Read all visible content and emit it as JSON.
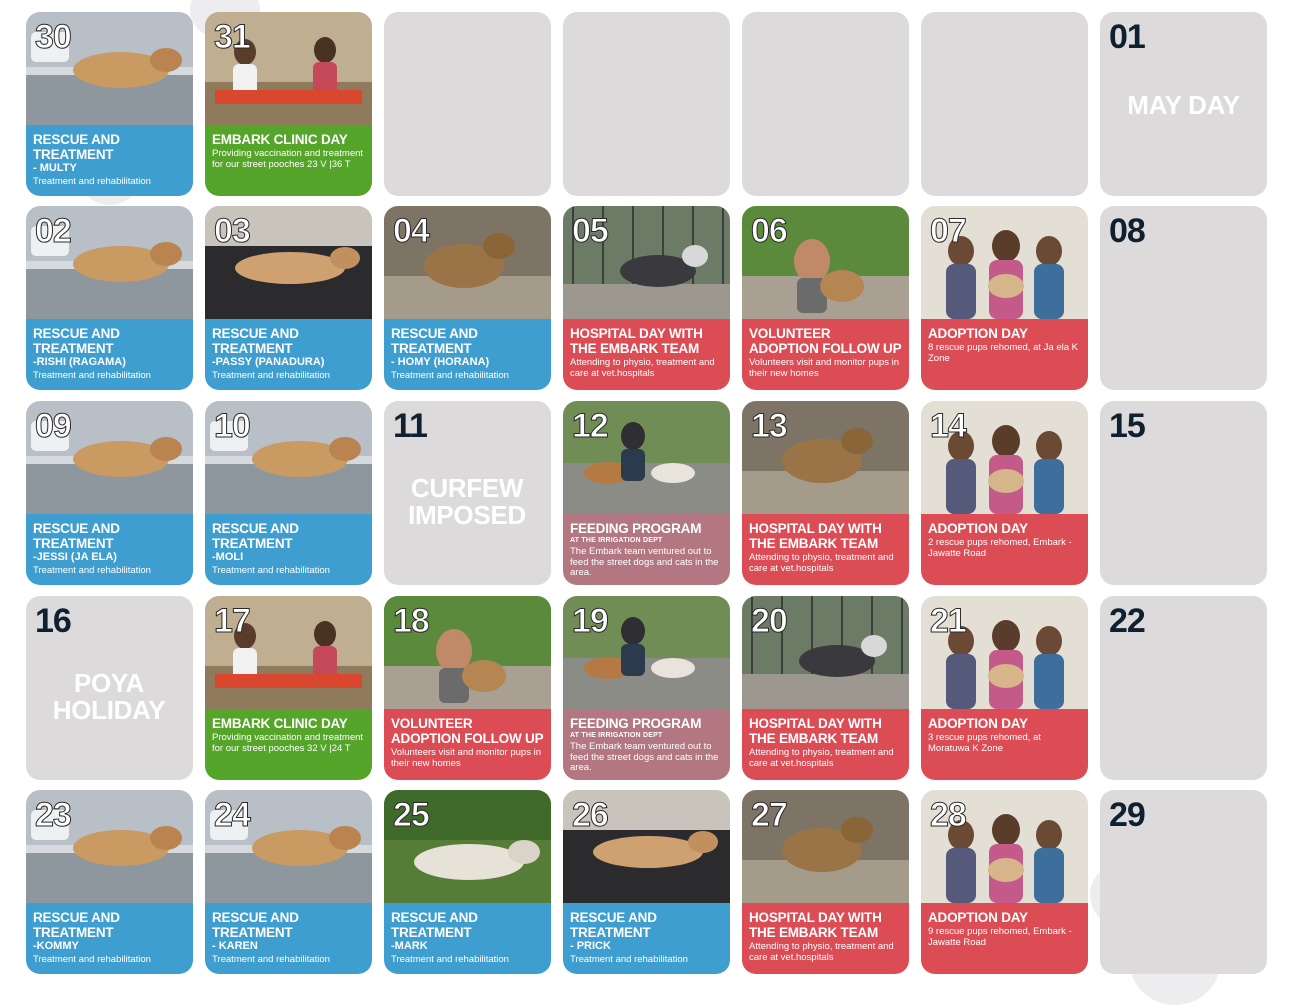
{
  "days": [
    {
      "day": "30",
      "type": "photo",
      "style": "blue",
      "title": "Rescue and treatment",
      "subtitle": "- MULTY",
      "desc": "Treatment and rehabilitation",
      "photo": "vet"
    },
    {
      "day": "31",
      "type": "photo",
      "style": "green",
      "title": "Embark clinic day",
      "desc": "Providing vaccination and treatment for our street pooches 23 V |36 T",
      "photo": "clinic"
    },
    {
      "type": "empty"
    },
    {
      "type": "empty"
    },
    {
      "type": "empty"
    },
    {
      "type": "empty"
    },
    {
      "day": "01",
      "type": "text",
      "holiday": "MAY DAY"
    },
    {
      "day": "02",
      "type": "photo",
      "style": "blue",
      "title": "Rescue and treatment",
      "subtitle": "-RISHI (RAGAMA)",
      "desc": "Treatment and rehabilitation",
      "photo": "vet"
    },
    {
      "day": "03",
      "type": "photo",
      "style": "blue",
      "title": "Rescue and treatment",
      "subtitle": "-PASSY  (PANADURA)",
      "desc": "Treatment and rehabilitation",
      "photo": "mat"
    },
    {
      "day": "04",
      "type": "photo",
      "style": "blue",
      "title": "Rescue and treatment",
      "subtitle": "- HOMY (HORANA)",
      "desc": "Treatment and rehabilitation",
      "photo": "street"
    },
    {
      "day": "05",
      "type": "photo",
      "style": "red",
      "title": "Hospital day with the embark team",
      "desc": "Attending to physio, treatment and care at vet.hospitals",
      "photo": "cage"
    },
    {
      "day": "06",
      "type": "photo",
      "style": "red",
      "title": "Volunteer adoption follow up",
      "desc": "Volunteers visit and monitor pups in their new homes",
      "photo": "garden"
    },
    {
      "day": "07",
      "type": "photo",
      "style": "red",
      "title": "Adoption day",
      "desc": "8 rescue pups rehomed, at Ja ela K Zone",
      "photo": "family"
    },
    {
      "day": "08",
      "type": "text"
    },
    {
      "day": "09",
      "type": "photo",
      "style": "blue",
      "title": "Rescue and treatment",
      "subtitle": "-JESSI (JA ELA)",
      "desc": "Treatment and rehabilitation",
      "photo": "vet"
    },
    {
      "day": "10",
      "type": "photo",
      "style": "blue",
      "title": "Rescue and treatment",
      "subtitle": "-MOLI",
      "desc": "Treatment and rehabilitation",
      "photo": "vet"
    },
    {
      "day": "11",
      "type": "text",
      "holiday": "CURFEW IMPOSED"
    },
    {
      "day": "12",
      "type": "photo",
      "style": "mauve",
      "title": "Feeding program",
      "smalltext": "AT THE IRRIGATION DEPT",
      "desc": "The Embark team ventured out to feed the street dogs and cats in the area.",
      "photo": "feeding"
    },
    {
      "day": "13",
      "type": "photo",
      "style": "red",
      "title": "Hospital day with the embark team",
      "desc": "Attending to physio, treatment and care at vet.hospitals",
      "photo": "street"
    },
    {
      "day": "14",
      "type": "photo",
      "style": "red",
      "title": "Adoption day",
      "desc": "2 rescue pups rehomed, Embark - Jawatte Road",
      "photo": "family"
    },
    {
      "day": "15",
      "type": "text"
    },
    {
      "day": "16",
      "type": "text",
      "holiday": "POYA HOLIDAY"
    },
    {
      "day": "17",
      "type": "photo",
      "style": "green",
      "title": "Embark clinic day",
      "desc": "Providing vaccination and treatment for our street pooches 32 V |24 T",
      "photo": "clinic"
    },
    {
      "day": "18",
      "type": "photo",
      "style": "red",
      "title": "Volunteer adoption follow up",
      "desc": "Volunteers visit and monitor pups in their new homes",
      "photo": "garden"
    },
    {
      "day": "19",
      "type": "photo",
      "style": "mauve",
      "title": "Feeding program",
      "smalltext": "AT THE IRRIGATION DEPT",
      "desc": "The Embark team ventured out to feed the street dogs and cats in the area.",
      "photo": "feeding"
    },
    {
      "day": "20",
      "type": "photo",
      "style": "red",
      "title": "Hospital day with the embark team",
      "desc": "Attending to physio, treatment and care at vet.hospitals",
      "photo": "cage"
    },
    {
      "day": "21",
      "type": "photo",
      "style": "red",
      "title": "Adoption day",
      "desc": "3 rescue pups rehomed, at Moratuwa K Zone",
      "photo": "family"
    },
    {
      "day": "22",
      "type": "text"
    },
    {
      "day": "23",
      "type": "photo",
      "style": "blue",
      "title": "Rescue and treatment",
      "subtitle": "-KOMMY",
      "desc": "Treatment and rehabilitation",
      "photo": "vet"
    },
    {
      "day": "24",
      "type": "photo",
      "style": "blue",
      "title": "Rescue and treatment",
      "subtitle": "- KAREN",
      "desc": "Treatment and rehabilitation",
      "photo": "vet"
    },
    {
      "day": "25",
      "type": "photo",
      "style": "blue",
      "title": "Rescue and treatment",
      "subtitle": "-MARK",
      "desc": "Treatment and rehabilitation",
      "photo": "grass"
    },
    {
      "day": "26",
      "type": "photo",
      "style": "blue",
      "title": "Rescue and treatment",
      "subtitle": "- PRICK",
      "desc": "Treatment and rehabilitation",
      "photo": "mat"
    },
    {
      "day": "27",
      "type": "photo",
      "style": "red",
      "title": "Hospital day with the embark team",
      "desc": "Attending to physio, treatment and care at vet.hospitals",
      "photo": "street"
    },
    {
      "day": "28",
      "type": "photo",
      "style": "red",
      "title": "Adoption day",
      "desc": "9 rescue pups rehomed, Embark - Jawatte Road",
      "photo": "family"
    },
    {
      "day": "29",
      "type": "text"
    }
  ],
  "colors": {
    "blue": "#3e9ed0",
    "green": "#55a52a",
    "red": "#db4c55",
    "mauve": "#b27780",
    "empty": "#dcdadb"
  }
}
